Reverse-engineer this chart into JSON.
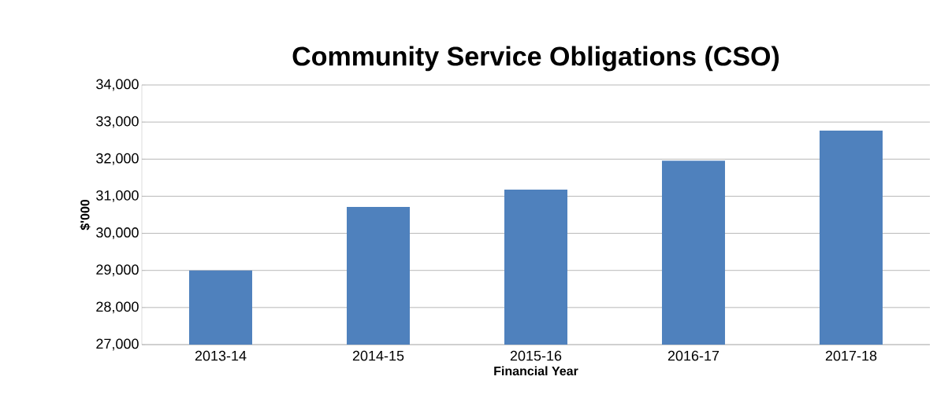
{
  "chart_data": {
    "type": "bar",
    "title": "Community Service Obligations (CSO)",
    "xlabel": "Financial Year",
    "ylabel": "$'000",
    "categories": [
      "2013-14",
      "2014-15",
      "2015-16",
      "2016-17",
      "2017-18"
    ],
    "values": [
      29000,
      30710,
      31180,
      31960,
      32770
    ],
    "color": "#4f81bd",
    "ylim": [
      27000,
      34000
    ],
    "yticks": [
      {
        "value": 27000,
        "label": "27,000"
      },
      {
        "value": 28000,
        "label": "28,000"
      },
      {
        "value": 29000,
        "label": "29,000"
      },
      {
        "value": 30000,
        "label": "30,000"
      },
      {
        "value": 31000,
        "label": "31,000"
      },
      {
        "value": 32000,
        "label": "32,000"
      },
      {
        "value": 33000,
        "label": "33,000"
      },
      {
        "value": 34000,
        "label": "34,000"
      }
    ],
    "grid": "y"
  }
}
